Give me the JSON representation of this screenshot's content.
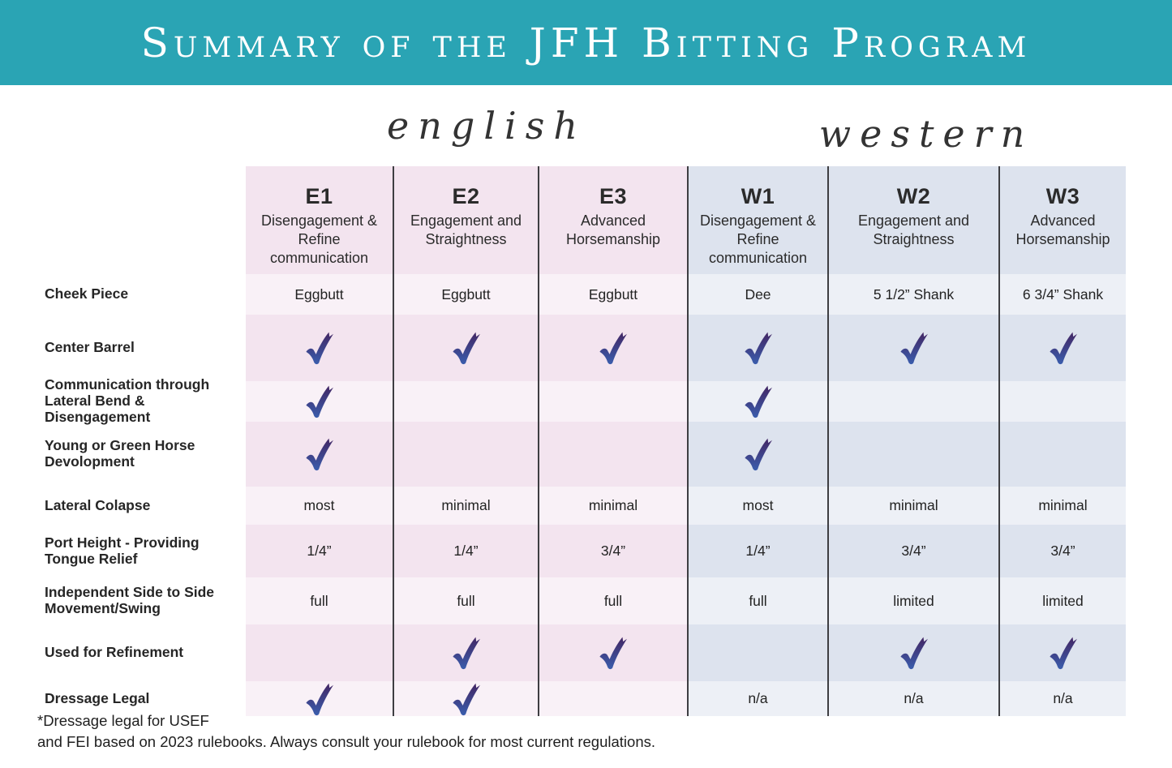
{
  "banner": {
    "title": "Summary of the JFH Bitting Program"
  },
  "section_headings": {
    "english": "english",
    "western": "western"
  },
  "columns": [
    {
      "code": "E1",
      "subtitle": "Disengagement & Refine communication",
      "group": "english"
    },
    {
      "code": "E2",
      "subtitle": "Engagement and Straightness",
      "group": "english"
    },
    {
      "code": "E3",
      "subtitle": "Advanced Horsemanship",
      "group": "english"
    },
    {
      "code": "W1",
      "subtitle": "Disengagement & Refine communication",
      "group": "western"
    },
    {
      "code": "W2",
      "subtitle": "Engagement and Straightness",
      "group": "western"
    },
    {
      "code": "W3",
      "subtitle": "Advanced Horsemanship",
      "group": "western"
    }
  ],
  "rows": [
    {
      "label": "Cheek Piece",
      "cells": [
        "Eggbutt",
        "Eggbutt",
        "Eggbutt",
        "Dee",
        "5 1/2” Shank",
        "6 3/4” Shank"
      ]
    },
    {
      "label": "Center Barrel",
      "cells": [
        "check",
        "check",
        "check",
        "check",
        "check",
        "check"
      ]
    },
    {
      "label": "Communication through Lateral Bend & Disengagement",
      "cells": [
        "check",
        "",
        "",
        "check",
        "",
        ""
      ]
    },
    {
      "label": "Young or Green Horse Devolopment",
      "cells": [
        "check",
        "",
        "",
        "check",
        "",
        ""
      ]
    },
    {
      "label": "Lateral Colapse",
      "cells": [
        "most",
        "minimal",
        "minimal",
        "most",
        "minimal",
        "minimal"
      ]
    },
    {
      "label": "Port Height - Providing Tongue Relief",
      "cells": [
        "1/4”",
        "1/4”",
        "3/4”",
        "1/4”",
        "3/4”",
        "3/4”"
      ]
    },
    {
      "label": "Independent Side to Side Movement/Swing",
      "cells": [
        "full",
        "full",
        "full",
        "full",
        "limited",
        "limited"
      ]
    },
    {
      "label": "Used for Refinement",
      "cells": [
        "",
        "check",
        "check",
        "",
        "check",
        "check"
      ]
    },
    {
      "label": "Dressage Legal",
      "cells": [
        "check",
        "check",
        "",
        "n/a",
        "n/a",
        "n/a"
      ]
    }
  ],
  "footnote": {
    "line1": "*Dressage legal for USEF",
    "line2": "and FEI based on 2023 rulebooks. Always consult your rulebook for most current regulations."
  },
  "colors": {
    "banner_bg": "#2aa4b4",
    "title_text": "#ffffff",
    "heading_text": "#333333",
    "body_text": "#232323",
    "english_row_light": "#f9f1f7",
    "english_row_dark": "#f3e4ef",
    "western_row_light": "#edf0f6",
    "western_row_dark": "#dde3ee",
    "divider": "#3e3e42",
    "check_top": "#432663",
    "check_bottom": "#3a5dad"
  }
}
